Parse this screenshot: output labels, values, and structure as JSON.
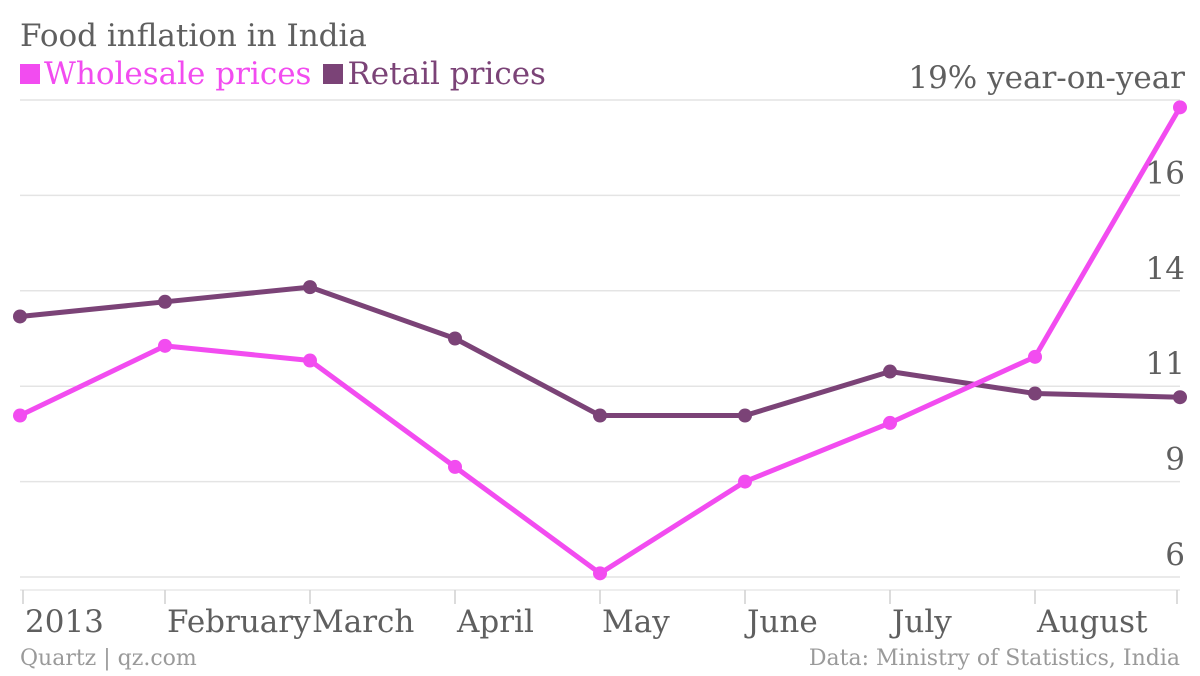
{
  "chart_data": {
    "type": "line",
    "title": "Food inflation in India",
    "x": [
      "2013-01",
      "2013-02",
      "2013-03",
      "2013-04",
      "2013-05",
      "2013-06",
      "2013-07",
      "2013-08",
      "2013-09"
    ],
    "x_tick_labels": [
      "2013",
      "February",
      "March",
      "April",
      "May",
      "June",
      "July",
      "August"
    ],
    "series": [
      {
        "name": "Wholesale prices",
        "color": "#f24cf0",
        "values": [
          10.4,
          12.3,
          11.9,
          9.0,
          6.1,
          8.6,
          10.2,
          12.0,
          18.8
        ]
      },
      {
        "name": "Retail prices",
        "color": "#7b4377",
        "values": [
          13.1,
          13.5,
          13.9,
          12.5,
          10.4,
          10.4,
          11.6,
          11.0,
          10.9
        ]
      }
    ],
    "y_tick_labels": [
      "6",
      "9",
      "11",
      "14",
      "16",
      "19% year-on-year"
    ],
    "ylim": [
      6,
      19
    ],
    "xlabel": "",
    "ylabel": "",
    "grid": true,
    "legend_position": "top-left"
  },
  "footer": {
    "source_left": "Quartz | qz.com",
    "source_right": "Data: Ministry of Statistics, India"
  }
}
